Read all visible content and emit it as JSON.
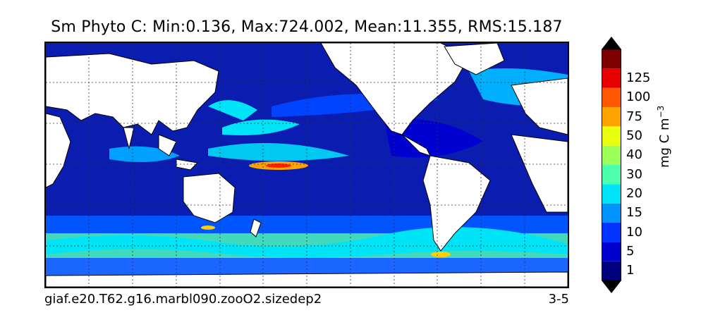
{
  "title": "Sm Phyto C: Min:0.136, Max:724.002, Mean:11.355, RMS:15.187",
  "caption_left": "giaf.e20.T62.g16.marbl090.zooO2.sizedep2",
  "caption_right": "3-5",
  "colorbar": {
    "unit": "mg C m",
    "unit_exp": "−3",
    "ticks": [
      "1",
      "5",
      "10",
      "15",
      "20",
      "30",
      "40",
      "50",
      "75",
      "100",
      "125"
    ],
    "colors": [
      "#00007f",
      "#0000d0",
      "#0033ff",
      "#0093ff",
      "#00e4f7",
      "#4cffaa",
      "#9dff5a",
      "#eaff0d",
      "#ffa300",
      "#ff5800",
      "#e80000",
      "#7f0000"
    ],
    "extend": "both"
  }
}
